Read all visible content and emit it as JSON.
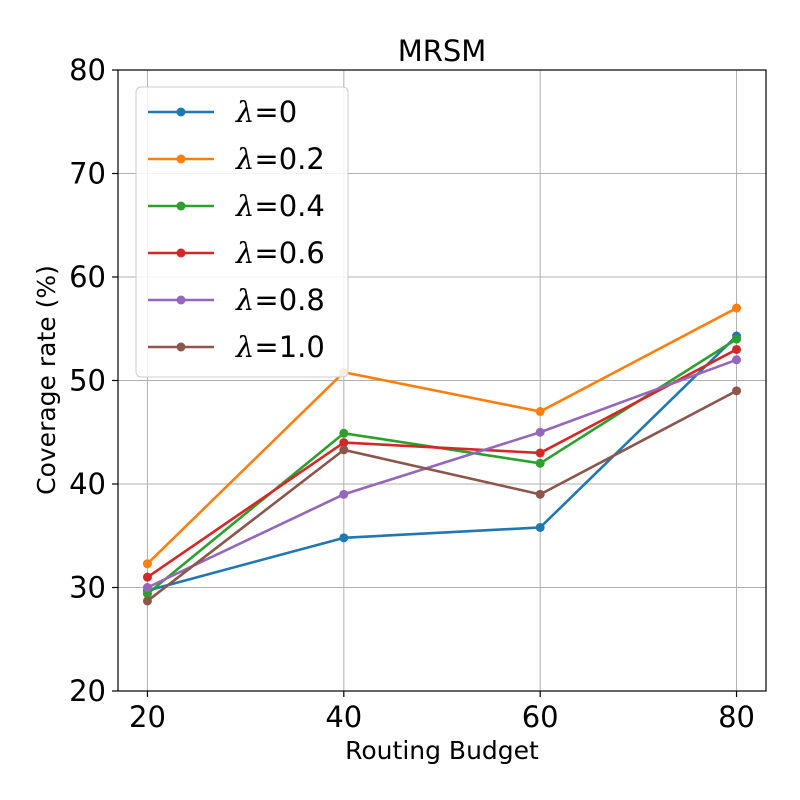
{
  "chart_data": {
    "type": "line",
    "title": "MRSM",
    "xlabel": "Routing Budget",
    "ylabel": "Coverage rate (%)",
    "x": [
      20,
      40,
      60,
      80
    ],
    "xlim": [
      17,
      83
    ],
    "ylim": [
      20,
      80
    ],
    "xticks": [
      "20",
      "40",
      "60",
      "80"
    ],
    "yticks": [
      "20",
      "30",
      "40",
      "50",
      "60",
      "70",
      "80"
    ],
    "grid": true,
    "legend_position": "top-left",
    "legend_symbol": "λ",
    "series": [
      {
        "name": "=0",
        "color": "#1f77b4",
        "values": [
          29.7,
          34.8,
          35.8,
          54.3
        ]
      },
      {
        "name": "=0.2",
        "color": "#ff7f0e",
        "values": [
          32.3,
          50.8,
          47.0,
          57.0
        ]
      },
      {
        "name": "=0.4",
        "color": "#2ca02c",
        "values": [
          29.4,
          44.9,
          42.0,
          54.0
        ]
      },
      {
        "name": "=0.6",
        "color": "#d62728",
        "values": [
          31.0,
          44.0,
          43.0,
          53.0
        ]
      },
      {
        "name": "=0.8",
        "color": "#9467bd",
        "values": [
          30.0,
          39.0,
          45.0,
          52.0
        ]
      },
      {
        "name": "=1.0",
        "color": "#8c564b",
        "values": [
          28.7,
          43.3,
          39.0,
          49.0
        ]
      }
    ]
  }
}
